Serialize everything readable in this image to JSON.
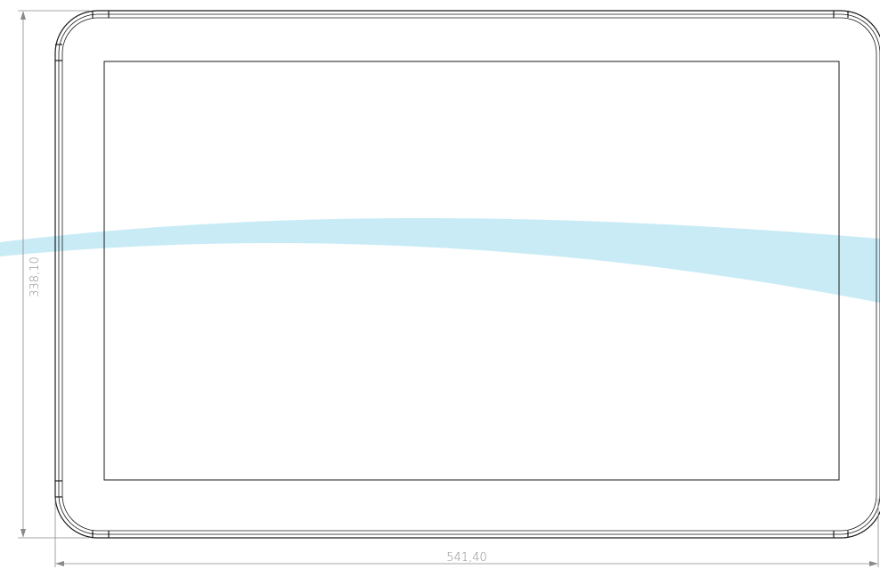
{
  "drawing": {
    "colors": {
      "outline": "#1a1a1a",
      "dimension": "#8a8a8a",
      "accent_band": "#bfe8f4"
    },
    "dimensions": {
      "width": {
        "value": "541,40"
      },
      "height": {
        "value": "338,10"
      }
    }
  }
}
